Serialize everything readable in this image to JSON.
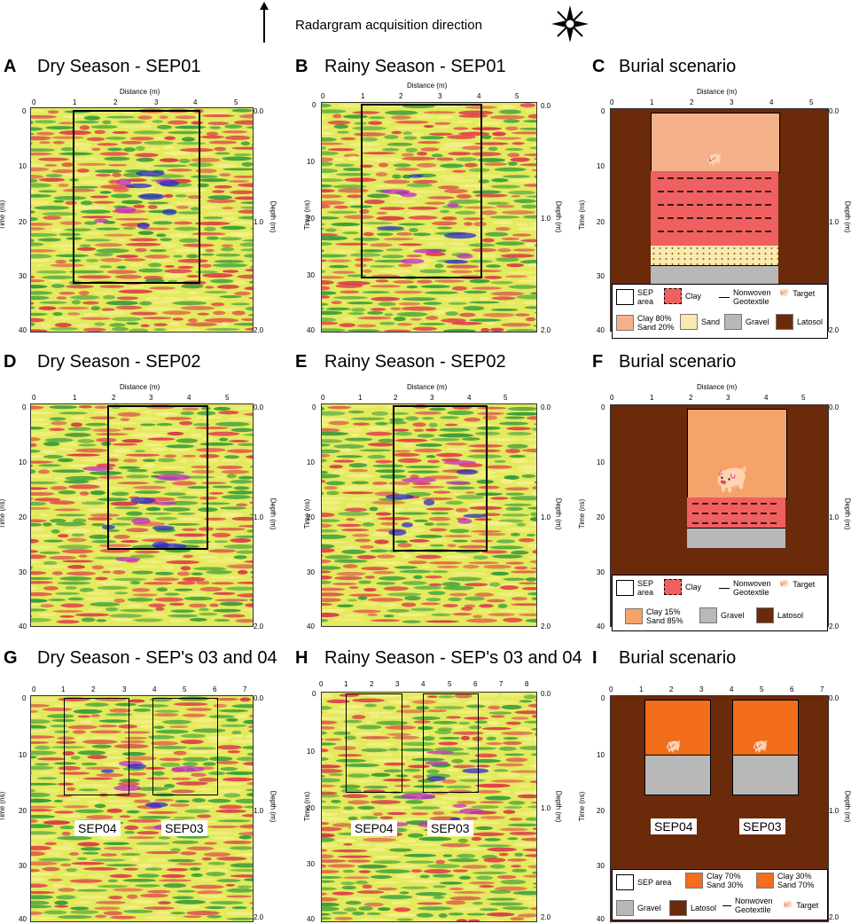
{
  "header": {
    "direction_label": "Radargram acquisition direction"
  },
  "axes": {
    "distance": "Distance (m)",
    "time": "Time (ns)",
    "depth": "Depth (m)"
  },
  "panels": [
    {
      "letter": "A",
      "title": "Dry Season - SEP01"
    },
    {
      "letter": "B",
      "title": "Rainy Season - SEP01"
    },
    {
      "letter": "C",
      "title": "Burial scenario"
    },
    {
      "letter": "D",
      "title": "Dry Season - SEP02"
    },
    {
      "letter": "E",
      "title": "Rainy Season - SEP02"
    },
    {
      "letter": "F",
      "title": "Burial scenario"
    },
    {
      "letter": "G",
      "title": "Dry Season - SEP's 03 and 04"
    },
    {
      "letter": "H",
      "title": "Rainy Season - SEP's 03 and 04"
    },
    {
      "letter": "I",
      "title": "Burial scenario"
    }
  ],
  "ticks": {
    "time": [
      "0",
      "10",
      "20",
      "30",
      "40"
    ],
    "depth_top": "0.0",
    "depth_mid": "1.0",
    "depth_bot": "2.0",
    "dist_0_5": [
      "0",
      "1",
      "2",
      "3",
      "4",
      "5"
    ],
    "dist_0_7": [
      "0",
      "1",
      "2",
      "3",
      "4",
      "5",
      "6",
      "7"
    ],
    "dist_0_8": [
      "0",
      "1",
      "2",
      "3",
      "4",
      "5",
      "6",
      "7",
      "8"
    ]
  },
  "labels": {
    "sep04": "SEP04",
    "sep03": "SEP03"
  },
  "legend_c": {
    "sep_area": "SEP area",
    "clay": "Clay",
    "geotextile": "Nonwoven Geotextile",
    "target": "Target",
    "clay_sand": "Clay 80% Sand 20%",
    "sand": "Sand",
    "gravel": "Gravel",
    "latosol": "Latosol"
  },
  "legend_f": {
    "sep_area": "SEP area",
    "clay": "Clay",
    "geotextile": "Nonwoven Geotextile",
    "target": "Target",
    "clay_sand": "Clay 15% Sand 85%",
    "gravel": "Gravel",
    "latosol": "Latosol"
  },
  "legend_i": {
    "sep_area": "SEP area",
    "clay_sand_a": "Clay 70% Sand 30%",
    "clay_sand_b": "Clay 30% Sand 70%",
    "gravel": "Gravel",
    "latosol": "Latosol",
    "geotextile": "Nonwoven Geotextile",
    "target": "Target"
  },
  "colors": {
    "latosol": "#6b2a0a",
    "clay80": "#f5b28a",
    "clay_red": "#f06060",
    "sand": "#fbe9b0",
    "gravel": "#b8b8b8",
    "clay15": "#f5a36a",
    "clay70": "#f26e1a",
    "radar_bg": "#e3ea5e"
  }
}
